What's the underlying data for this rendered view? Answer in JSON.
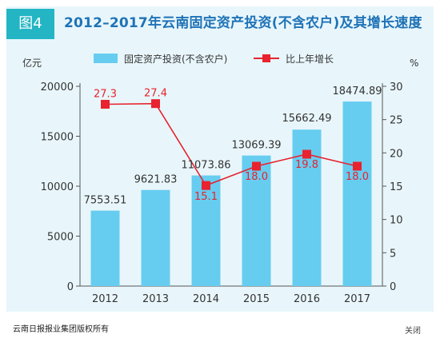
{
  "header": {
    "badge": "图4",
    "title": "2012–2017年云南固定资产投资(不含农户)及其增长速度"
  },
  "footer": {
    "credit": "云南日报报业集团版权所有",
    "close_label": "关闭"
  },
  "colors": {
    "frame_bg": "#e8f6fb",
    "bar": "#66cdf0",
    "line": "#e8222e",
    "badge": "#23b5c4",
    "title": "#1f73b7",
    "axis_text": "#333333",
    "bar_label": "#333333",
    "line_label": "#e8222e"
  },
  "chart_data": {
    "type": "bar",
    "categories": [
      "2012",
      "2013",
      "2014",
      "2015",
      "2016",
      "2017"
    ],
    "series": [
      {
        "name": "固定资产投资(不含农户)",
        "type": "bar",
        "axis": "left",
        "values": [
          7553.51,
          9621.83,
          11073.86,
          13069.39,
          15662.49,
          18474.89
        ],
        "labels": [
          "7553.51",
          "9621.83",
          "11073.86",
          "13069.39",
          "15662.49",
          "18474.89"
        ]
      },
      {
        "name": "比上年增长",
        "type": "line",
        "axis": "right",
        "values": [
          27.3,
          27.4,
          15.1,
          18.0,
          19.8,
          18.0
        ],
        "labels": [
          "27.3",
          "27.4",
          "15.1",
          "18.0",
          "19.8",
          "18.0"
        ]
      }
    ],
    "y_left": {
      "unit": "亿元",
      "min": 0,
      "max": 20000,
      "ticks": [
        "0",
        "5000",
        "10000",
        "15000",
        "20000"
      ]
    },
    "y_right": {
      "unit": "%",
      "min": 0,
      "max": 30,
      "ticks": [
        "0",
        "5",
        "10",
        "15",
        "20",
        "25",
        "30"
      ]
    },
    "legend_position": "top",
    "grid": false
  }
}
